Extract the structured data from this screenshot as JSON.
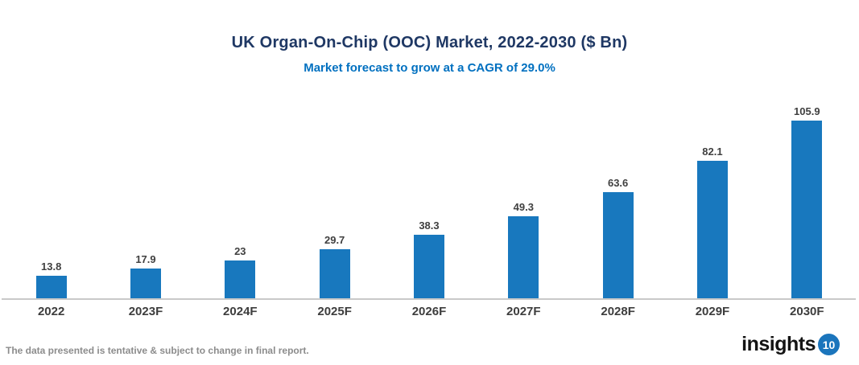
{
  "header": {
    "title": "UK Organ-On-Chip (OOC) Market, 2022-2030 ($ Bn)",
    "subtitle": "Market forecast to grow at a CAGR of 29.0%"
  },
  "chart_data": {
    "type": "bar",
    "title": "UK Organ-On-Chip (OOC) Market, 2022-2030 ($ Bn)",
    "subtitle": "Market forecast to grow at a CAGR of 29.0%",
    "categories": [
      "2022",
      "2023F",
      "2024F",
      "2025F",
      "2026F",
      "2027F",
      "2028F",
      "2029F",
      "2030F"
    ],
    "values": [
      13.8,
      17.9,
      23,
      29.7,
      38.3,
      49.3,
      63.6,
      82.1,
      105.9
    ],
    "value_labels": [
      "13.8",
      "17.9",
      "23",
      "29.7",
      "38.3",
      "49.3",
      "63.6",
      "82.1",
      "105.9"
    ],
    "unit": "$ Bn",
    "cagr": "29.0%",
    "xlabel": "",
    "ylabel": "",
    "ylim": [
      0,
      110
    ],
    "grid": false,
    "legend": false,
    "data_labels": true,
    "bar_color": "#1878BE"
  },
  "colors": {
    "title_text": "#1F3864",
    "subtitle_text": "#0070C0",
    "bar": "#1878BE",
    "axis_line": "#C9C9C9",
    "data_label_text": "#404040",
    "x_label_text": "#3D3D3D",
    "footer_text": "#8C8C8C",
    "logo_badge_bg": "#1B75BC"
  },
  "footer": {
    "note": "The data presented is tentative & subject to change in final report.",
    "logo_text": "insights",
    "logo_badge": "10"
  }
}
